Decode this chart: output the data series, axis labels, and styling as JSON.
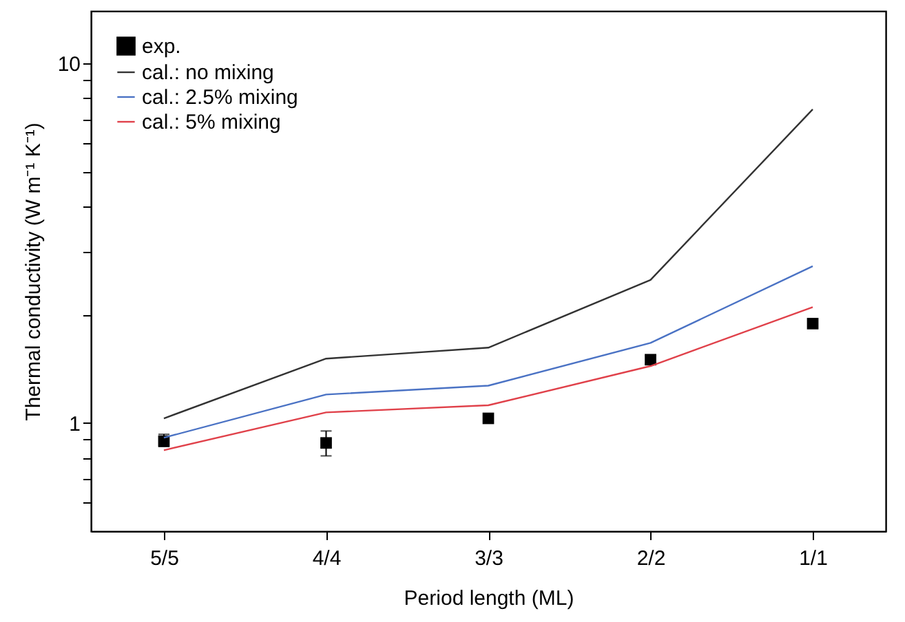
{
  "chart_data": {
    "type": "line",
    "xlabel": "Period length (ML)",
    "ylabel": "Thermal conductivity (W m⁻¹ K⁻¹)",
    "categories": [
      "5/5",
      "4/4",
      "3/3",
      "2/2",
      "1/1"
    ],
    "series": [
      {
        "name": "exp.",
        "type": "scatter",
        "color": "#000000",
        "marker": "square",
        "values": [
          0.89,
          0.88,
          1.03,
          1.5,
          1.89
        ],
        "errors": [
          [
            0.86,
            0.93
          ],
          [
            0.81,
            0.95
          ],
          [
            1.0,
            1.06
          ],
          [
            1.46,
            1.54
          ],
          [
            1.86,
            1.92
          ]
        ]
      },
      {
        "name": "cal.: no mixing",
        "type": "line",
        "color": "#333333",
        "values": [
          1.03,
          1.51,
          1.62,
          2.5,
          7.46
        ]
      },
      {
        "name": "cal.: 2.5% mixing",
        "type": "line",
        "color": "#4a72c4",
        "values": [
          0.91,
          1.2,
          1.27,
          1.67,
          2.73
        ]
      },
      {
        "name": "cal.: 5% mixing",
        "type": "line",
        "color": "#e0414a",
        "values": [
          0.84,
          1.07,
          1.12,
          1.44,
          2.1
        ]
      }
    ],
    "log": "y",
    "ylim": [
      0.5,
      14
    ],
    "yticks": [
      {
        "value": 0.6,
        "label": null
      },
      {
        "value": 0.7,
        "label": null
      },
      {
        "value": 0.8,
        "label": null
      },
      {
        "value": 0.9,
        "label": null
      },
      1,
      {
        "value": 2,
        "label": null
      },
      {
        "value": 3,
        "label": null
      },
      {
        "value": 4,
        "label": null
      },
      {
        "value": 5,
        "label": null
      },
      {
        "value": 6,
        "label": null
      },
      {
        "value": 7,
        "label": null
      },
      {
        "value": 8,
        "label": null
      },
      {
        "value": 9,
        "label": null
      },
      10
    ],
    "grid": false,
    "legend": "top left",
    "line_style": "solid",
    "marker": "none"
  }
}
